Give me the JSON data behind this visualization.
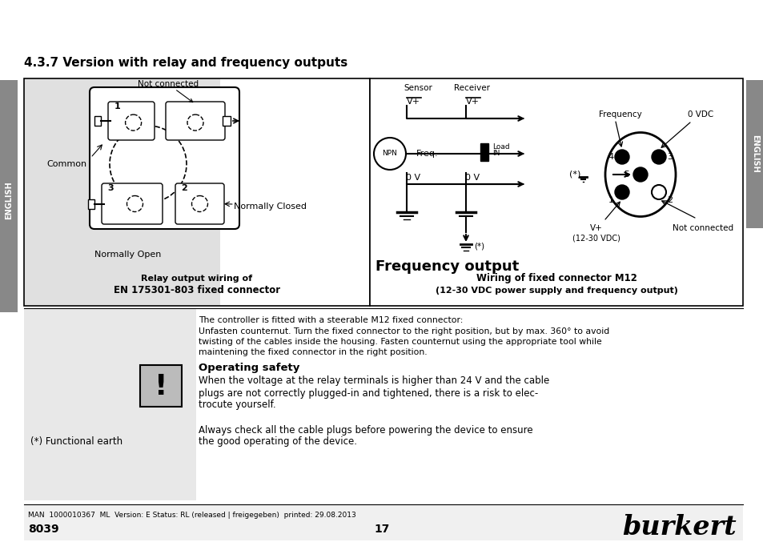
{
  "title": "4.3.7 Version with relay and frequency outputs",
  "bg_color": "#ffffff",
  "side_tab_color": "#888888",
  "side_tab_text": "ENGLISH",
  "relay_caption_line1": "Relay output wiring of",
  "relay_caption_line2": "EN 175301-803 fixed connector",
  "freq_caption_bold": "Frequency output",
  "wiring_caption_line1": "Wiring of fixed connector M12",
  "wiring_caption_line2": "(12-30 VDC power supply and frequency output)",
  "body_text_line1": "The controller is fitted with a steerable M12 fixed connector:",
  "body_text_line2": "Unfasten counternut. Turn the fixed connector to the right position, but by max. 360° to avoid",
  "body_text_line3": "twisting of the cables inside the housing. Fasten counternut using the appropriate tool while",
  "body_text_line4": "maintening the fixed connector in the right position.",
  "op_safety_bold": "Operating safety",
  "op_safety_line1": "When the voltage at the relay terminals is higher than 24 V and the cable",
  "op_safety_line2": "plugs are not correctly plugged-in and tightened, there is a risk to elec-",
  "op_safety_line3": "trocute yourself.",
  "always_line1": "Always check all the cable plugs before powering the device to ensure",
  "always_line2": "the good operating of the device.",
  "func_earth": "(*) Functional earth",
  "footer_left": "MAN  1000010367  ML  Version: E Status: RL (released | freigegeben)  printed: 29.08.2013",
  "footer_page": "17",
  "footer_model": "8039",
  "footer_brand": "burkert"
}
